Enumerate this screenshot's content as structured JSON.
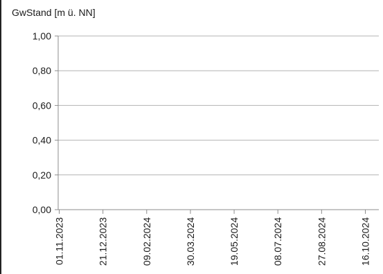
{
  "chart_data": {
    "type": "line",
    "title": "",
    "xlabel": "",
    "ylabel": "GwStand [m ü. NN]",
    "ylim": [
      0,
      1
    ],
    "yticks": [
      0,
      0.2,
      0.4,
      0.6,
      0.8,
      1.0
    ],
    "ytick_labels": [
      "0,00",
      "0,20",
      "0,40",
      "0,60",
      "0,80",
      "1,00"
    ],
    "xticks": [
      "01.11.2023",
      "21.12.2023",
      "09.02.2024",
      "30.03.2024",
      "19.05.2024",
      "08.07.2024",
      "27.08.2024",
      "16.10.2024"
    ],
    "grid": true,
    "series": []
  },
  "colors": {
    "gridline": "#b3b3b3",
    "axis": "#8c8c8c",
    "text": "#1a1a1a"
  }
}
